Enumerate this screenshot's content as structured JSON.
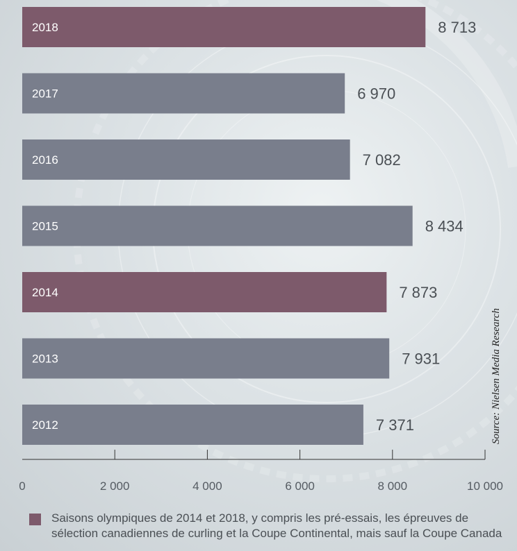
{
  "chart_data": {
    "type": "bar",
    "orientation": "horizontal",
    "categories": [
      "2018",
      "2017",
      "2016",
      "2015",
      "2014",
      "2013",
      "2012"
    ],
    "values": [
      8713,
      6970,
      7082,
      8434,
      7873,
      7931,
      7371
    ],
    "value_labels": [
      "8 713",
      "6 970",
      "7 082",
      "8 434",
      "7 873",
      "7 931",
      "7 371"
    ],
    "highlighted": [
      true,
      false,
      false,
      false,
      true,
      false,
      false
    ],
    "xlim": [
      0,
      10000
    ],
    "xticks": [
      0,
      2000,
      4000,
      6000,
      8000,
      10000
    ],
    "xtick_labels": [
      "0",
      "2 000",
      "4 000",
      "6 000",
      "8 000",
      "10 000"
    ],
    "grid": false,
    "legend_position": "bottom",
    "colors": {
      "olympic": "#7d5a6b",
      "regular": "#797e8c"
    }
  },
  "legend": {
    "text": "Saisons olympiques de 2014 et 2018, y compris les pré-essais, les épreuves de sélection canadiennes de curling et la Coupe Continental, mais sauf la Coupe Canada"
  },
  "source": "Source: Nielsen Media Research"
}
